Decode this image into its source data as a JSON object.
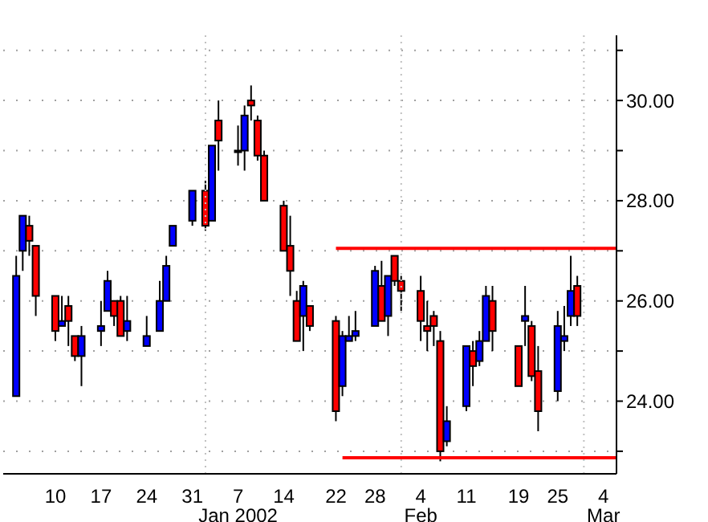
{
  "chart_data": {
    "type": "candlestick",
    "x": [
      "2001-12-04",
      "2001-12-05",
      "2001-12-06",
      "2001-12-07",
      "2001-12-10",
      "2001-12-11",
      "2001-12-12",
      "2001-12-13",
      "2001-12-14",
      "2001-12-17",
      "2001-12-18",
      "2001-12-19",
      "2001-12-20",
      "2001-12-21",
      "2001-12-24",
      "2001-12-26",
      "2001-12-27",
      "2001-12-28",
      "2001-12-31",
      "2002-01-02",
      "2002-01-03",
      "2002-01-04",
      "2002-01-07",
      "2002-01-08",
      "2002-01-09",
      "2002-01-10",
      "2002-01-11",
      "2002-01-14",
      "2002-01-15",
      "2002-01-16",
      "2002-01-17",
      "2002-01-18",
      "2002-01-22",
      "2002-01-23",
      "2002-01-24",
      "2002-01-25",
      "2002-01-28",
      "2002-01-29",
      "2002-01-30",
      "2002-01-31",
      "2002-02-01",
      "2002-02-04",
      "2002-02-05",
      "2002-02-06",
      "2002-02-07",
      "2002-02-08",
      "2002-02-11",
      "2002-02-12",
      "2002-02-13",
      "2002-02-14",
      "2002-02-15",
      "2002-02-19",
      "2002-02-20",
      "2002-02-21",
      "2002-02-22",
      "2002-02-25",
      "2002-02-26",
      "2002-02-27",
      "2002-02-28"
    ],
    "xlim": [
      "2001-12-02",
      "2002-03-06"
    ],
    "series": [
      {
        "ohlc": [
          [
            24.1,
            26.9,
            24.1,
            26.5
          ],
          [
            27.0,
            27.7,
            26.6,
            27.7
          ],
          [
            27.5,
            27.7,
            26.9,
            27.2
          ],
          [
            27.1,
            27.1,
            25.7,
            26.1
          ],
          [
            26.1,
            26.1,
            25.2,
            25.4
          ],
          [
            25.5,
            26.1,
            25.5,
            25.6
          ],
          [
            25.9,
            26.1,
            25.1,
            25.6
          ],
          [
            25.3,
            25.3,
            24.8,
            24.9
          ],
          [
            24.9,
            25.5,
            24.3,
            25.3
          ],
          [
            25.4,
            26.0,
            25.1,
            25.5
          ],
          [
            25.8,
            26.6,
            25.8,
            26.4
          ],
          [
            26.0,
            26.0,
            25.5,
            25.7
          ],
          [
            26.0,
            26.1,
            25.3,
            25.3
          ],
          [
            25.4,
            26.1,
            25.2,
            25.6
          ],
          [
            25.1,
            25.7,
            25.1,
            25.3
          ],
          [
            25.4,
            26.4,
            25.4,
            26.0
          ],
          [
            26.0,
            26.9,
            26.0,
            26.7
          ],
          [
            27.1,
            27.5,
            27.1,
            27.5
          ],
          [
            27.6,
            28.2,
            27.5,
            28.2
          ],
          [
            28.2,
            28.4,
            27.4,
            27.5
          ],
          [
            27.6,
            29.1,
            27.6,
            29.1
          ],
          [
            29.6,
            30.0,
            28.6,
            29.2
          ],
          [
            29.0,
            29.5,
            28.7,
            29.0
          ],
          [
            29.0,
            29.9,
            28.6,
            29.7
          ],
          [
            30.0,
            30.3,
            29.6,
            29.9
          ],
          [
            29.6,
            29.7,
            28.8,
            28.9
          ],
          [
            28.9,
            29.0,
            28.0,
            28.0
          ],
          [
            27.9,
            28.0,
            27.0,
            27.0
          ],
          [
            27.1,
            27.7,
            26.1,
            26.6
          ],
          [
            26.0,
            26.2,
            25.2,
            25.2
          ],
          [
            25.7,
            26.4,
            25.0,
            26.3
          ],
          [
            25.9,
            25.9,
            25.4,
            25.5
          ],
          [
            25.6,
            25.7,
            23.6,
            23.8
          ],
          [
            24.3,
            25.4,
            24.1,
            25.3
          ],
          [
            25.2,
            25.7,
            25.2,
            25.3
          ],
          [
            25.3,
            25.8,
            25.2,
            25.4
          ],
          [
            25.5,
            26.7,
            25.5,
            26.6
          ],
          [
            26.3,
            26.8,
            25.6,
            25.6
          ],
          [
            25.7,
            26.5,
            25.3,
            26.5
          ],
          [
            26.9,
            26.9,
            26.3,
            26.4
          ],
          [
            26.4,
            26.5,
            25.8,
            26.2
          ],
          [
            26.2,
            26.5,
            25.2,
            25.6
          ],
          [
            25.5,
            26.0,
            25.0,
            25.4
          ],
          [
            25.7,
            25.8,
            25.1,
            25.5
          ],
          [
            25.2,
            25.4,
            22.8,
            23.0
          ],
          [
            23.2,
            23.9,
            23.1,
            23.6
          ],
          [
            23.9,
            25.1,
            23.8,
            25.1
          ],
          [
            25.0,
            25.2,
            24.3,
            24.7
          ],
          [
            24.8,
            25.4,
            24.7,
            25.2
          ],
          [
            25.2,
            26.3,
            25.2,
            26.1
          ],
          [
            26.0,
            26.3,
            25.0,
            25.4
          ],
          [
            25.1,
            25.1,
            24.3,
            24.3
          ],
          [
            25.6,
            26.3,
            25.1,
            25.7
          ],
          [
            25.5,
            25.6,
            24.4,
            24.5
          ],
          [
            24.6,
            25.1,
            23.4,
            23.8
          ],
          [
            24.2,
            25.8,
            24.0,
            25.5
          ],
          [
            25.2,
            25.9,
            25.0,
            25.3
          ],
          [
            25.7,
            26.9,
            25.5,
            26.2
          ],
          [
            26.3,
            26.5,
            25.5,
            25.7
          ]
        ],
        "colors": [
          "#0000ff",
          "#0000ff",
          "#ff0000",
          "#ff0000",
          "#ff0000",
          "#0000ff",
          "#ff0000",
          "#ff0000",
          "#0000ff",
          "#0000ff",
          "#0000ff",
          "#ff0000",
          "#ff0000",
          "#0000ff",
          "#0000ff",
          "#0000ff",
          "#0000ff",
          "#0000ff",
          "#0000ff",
          "#ff0000",
          "#0000ff",
          "#ff0000",
          "#0000ff",
          "#0000ff",
          "#ff0000",
          "#ff0000",
          "#ff0000",
          "#ff0000",
          "#ff0000",
          "#ff0000",
          "#0000ff",
          "#ff0000",
          "#ff0000",
          "#0000ff",
          "#0000ff",
          "#0000ff",
          "#0000ff",
          "#ff0000",
          "#0000ff",
          "#ff0000",
          "#ff0000",
          "#ff0000",
          "#ff0000",
          "#ff0000",
          "#ff0000",
          "#0000ff",
          "#0000ff",
          "#ff0000",
          "#0000ff",
          "#0000ff",
          "#ff0000",
          "#ff0000",
          "#0000ff",
          "#ff0000",
          "#ff0000",
          "#0000ff",
          "#0000ff",
          "#0000ff",
          "#ff0000"
        ]
      },
      {
        "type": "line",
        "color": "#ff0000",
        "x": [
          "2002-01-22",
          "2002-03-06"
        ],
        "values": [
          27.05,
          27.05
        ]
      },
      {
        "type": "line",
        "color": "#ff0000",
        "x": [
          "2002-01-23",
          "2002-03-06"
        ],
        "values": [
          22.87,
          22.87
        ]
      }
    ],
    "ylim": [
      22.55,
      31.3
    ],
    "yticks": [
      {
        "value": 23,
        "label": null
      },
      {
        "value": 24,
        "label": "24.00"
      },
      {
        "value": 25,
        "label": null
      },
      {
        "value": 26,
        "label": "26.00"
      },
      {
        "value": 27,
        "label": null
      },
      {
        "value": 28,
        "label": "28.00"
      },
      {
        "value": 29,
        "label": null
      },
      {
        "value": 30,
        "label": "30.00"
      },
      {
        "value": 31,
        "label": null
      }
    ],
    "xticks": [
      {
        "value": "2001-12-10",
        "label": "10"
      },
      {
        "value": "2001-12-17",
        "label": "17"
      },
      {
        "value": "2001-12-24",
        "label": "24"
      },
      {
        "value": "2001-12-31",
        "label": "31"
      },
      {
        "value": "2002-01-07",
        "label": "7\nJan 2002"
      },
      {
        "value": "2002-01-14",
        "label": "14"
      },
      {
        "value": "2002-01-22",
        "label": "22"
      },
      {
        "value": "2002-01-28",
        "label": "28"
      },
      {
        "value": "2002-02-04",
        "label": "4\nFeb"
      },
      {
        "value": "2002-02-11",
        "label": "11"
      },
      {
        "value": "2002-02-19",
        "label": "19"
      },
      {
        "value": "2002-02-25",
        "label": "25"
      },
      {
        "value": "2002-03-04",
        "label": "4\nMar"
      }
    ],
    "ref_lines": [
      {
        "axis": "x",
        "value": "2002-01-02",
        "color": "#c0c0c0",
        "line_style": "dotted"
      },
      {
        "axis": "x",
        "value": "2002-02-01",
        "color": "#c0c0c0",
        "line_style": "dotted"
      },
      {
        "axis": "x",
        "value": "2002-03-01",
        "color": "#c0c0c0",
        "line_style": "dotted"
      }
    ],
    "grid": "y"
  }
}
